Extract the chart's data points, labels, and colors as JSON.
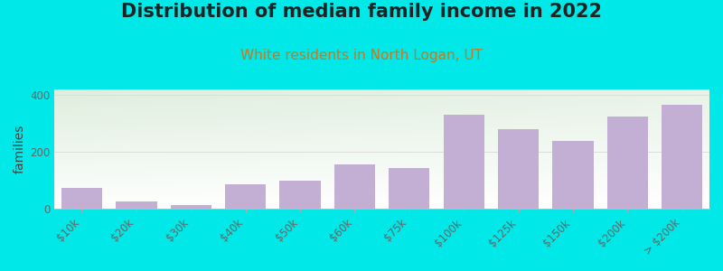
{
  "title": "Distribution of median family income in 2022",
  "subtitle": "White residents in North Logan, UT",
  "categories": [
    "$10k",
    "$20k",
    "$30k",
    "$40k",
    "$50k",
    "$60k",
    "$75k",
    "$100k",
    "$125k",
    "$150k",
    "$200k",
    "> $200k"
  ],
  "values": [
    75,
    25,
    15,
    85,
    100,
    155,
    145,
    330,
    280,
    240,
    325,
    365
  ],
  "bar_color": "#c4afd4",
  "bg_outer": "#00e8e8",
  "bg_plot_top_left": "#deeedd",
  "bg_plot_bottom_right": "#f8f8f8",
  "title_color": "#222222",
  "subtitle_color": "#c87820",
  "ylabel": "families",
  "ylim": [
    0,
    420
  ],
  "yticks": [
    0,
    200,
    400
  ],
  "grid_color": "#dddddd",
  "title_fontsize": 15,
  "subtitle_fontsize": 11,
  "ylabel_fontsize": 10,
  "tick_fontsize": 8.5
}
